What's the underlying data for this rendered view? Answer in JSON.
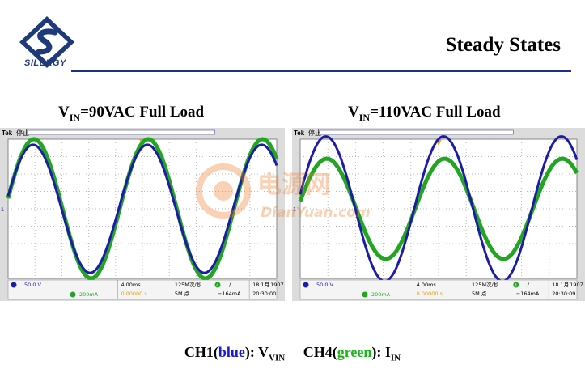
{
  "header": {
    "logo_text": "SILERGY",
    "title": "Steady States"
  },
  "captions": [
    {
      "v": "V",
      "sub": "IN",
      "rest": "=90VAC  Full Load"
    },
    {
      "v": "V",
      "sub": "IN",
      "rest": "=110VAC  Full Load"
    }
  ],
  "scopes": [
    {
      "brand": "Tek",
      "status": "停止",
      "ch1_scale": "50.0 V",
      "ch4_scale": "200mA",
      "timebase": "4.00ms",
      "trig_pos": "0.00000 s",
      "sample_rate": "125M次/秒",
      "record": "5M 点",
      "trig_ch": "4",
      "trig_level": "−164mA",
      "date": "18 1月",
      "year": "1907",
      "time": "20:30:00",
      "ch1_level_marker": "1",
      "ch4_level_marker": "4",
      "blue_amp": 0.46,
      "green_amp": 0.5,
      "green_flat": 0.0
    },
    {
      "brand": "Tek",
      "status": "停止",
      "ch1_scale": "50.0 V",
      "ch4_scale": "200mA",
      "timebase": "4.00ms",
      "trig_pos": "0.00000 s",
      "sample_rate": "125M次/秒",
      "record": "5M 点",
      "trig_ch": "4",
      "trig_level": "−164mA",
      "date": "18 1月",
      "year": "1907",
      "time": "20:30:09",
      "ch1_level_marker": "1",
      "ch4_level_marker": "4",
      "blue_amp": 0.52,
      "green_amp": 0.36,
      "green_flat": 0.0
    }
  ],
  "watermark": {
    "cn": "电源网",
    "en": "DianYuan.com"
  },
  "legend": {
    "ch1_prefix": "CH1(",
    "ch1_color_word": "blue",
    "ch1_suffix": "): V",
    "ch1_sub": "VIN",
    "ch4_prefix": "CH4(",
    "ch4_color_word": "green",
    "ch4_suffix": "): I",
    "ch4_sub": "IN"
  },
  "colors": {
    "brand_navy": "#1e3a7a",
    "ch1_blue": "#1c1ca8",
    "ch4_green": "#22a622",
    "rule": "#1e2f8c"
  }
}
